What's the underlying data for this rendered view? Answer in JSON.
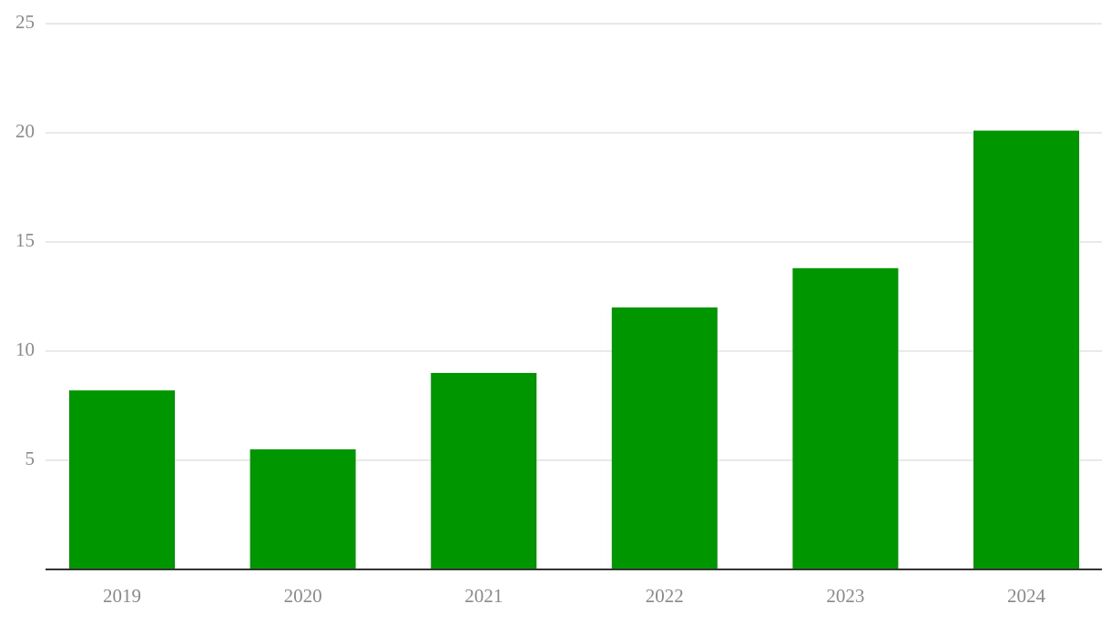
{
  "chart_data": {
    "type": "bar",
    "categories": [
      "2019",
      "2020",
      "2021",
      "2022",
      "2023",
      "2024"
    ],
    "values": [
      8.2,
      5.5,
      9.0,
      12.0,
      13.8,
      20.1
    ],
    "color": "#009600",
    "ylim": [
      0,
      25
    ],
    "yticks": [
      5,
      10,
      15,
      20,
      25
    ],
    "grid": true
  }
}
